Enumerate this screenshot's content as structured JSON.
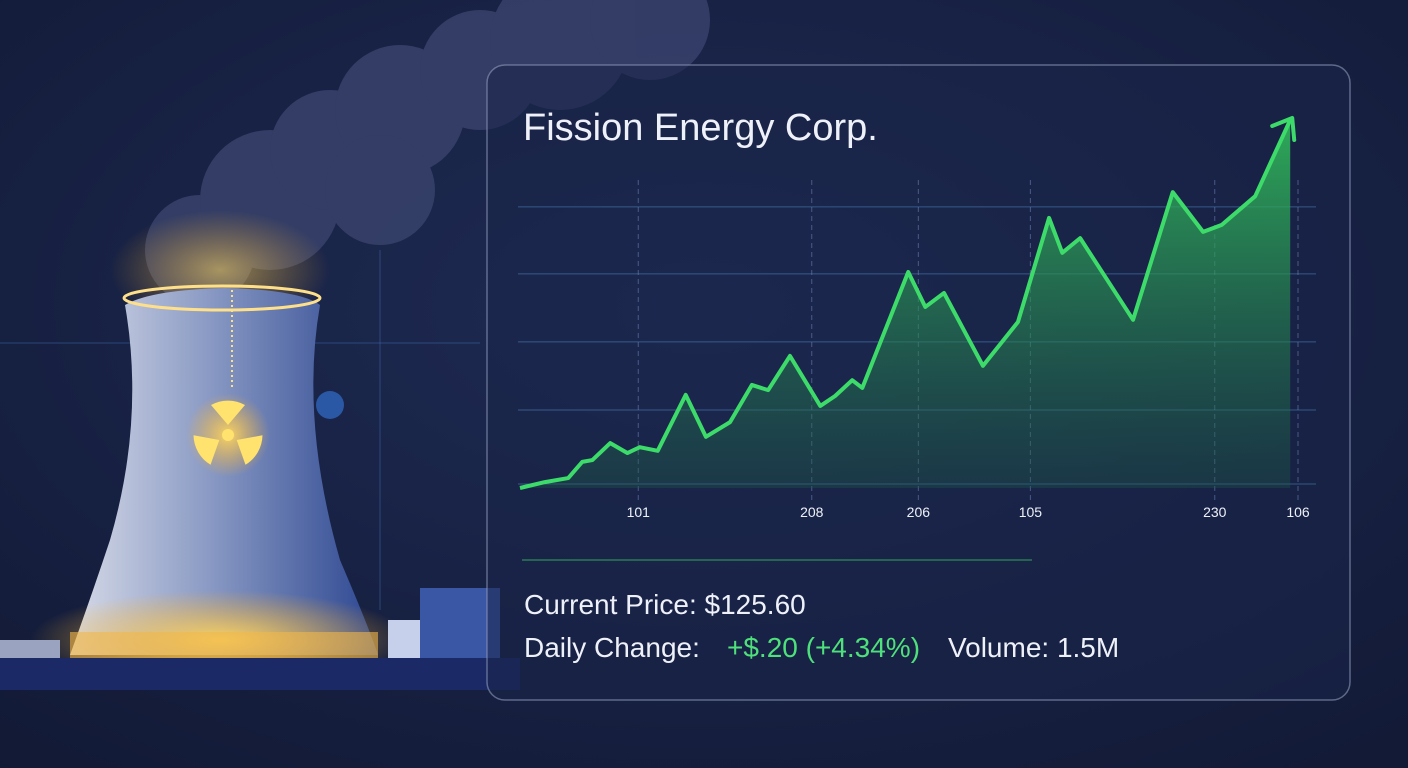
{
  "chart_data": {
    "type": "area",
    "title": "Fission Energy Corp.",
    "x": [
      0,
      3.2,
      6.2,
      8.0,
      9.3,
      11.6,
      13.8,
      15.4,
      17.7,
      21.3,
      23.9,
      27.0,
      29.8,
      31.9,
      34.7,
      38.6,
      40.5,
      42.7,
      44.0,
      49.9,
      52.1,
      54.5,
      59.5,
      64.0,
      68.0,
      69.7,
      72.0,
      78.8,
      83.9,
      87.8,
      90.2,
      94.5,
      99.0
    ],
    "values": [
      0,
      1.6,
      2.7,
      7.1,
      7.6,
      12.2,
      9.5,
      11.1,
      10.1,
      25.3,
      13.9,
      17.9,
      28.0,
      26.6,
      35.9,
      22.3,
      25.0,
      29.3,
      27.2,
      58.7,
      49.2,
      53.0,
      33.2,
      45.1,
      73.4,
      63.9,
      67.9,
      45.7,
      80.4,
      69.6,
      71.5,
      79.3,
      100
    ],
    "color": "#3ddc6a",
    "xlim": [
      0,
      100
    ],
    "ylim": [
      0,
      100
    ],
    "xticks": [
      {
        "value": 15.2,
        "label": "101"
      },
      {
        "value": 37.5,
        "label": "208"
      },
      {
        "value": 51.2,
        "label": "206"
      },
      {
        "value": 65.6,
        "label": "105"
      },
      {
        "value": 89.3,
        "label": "230"
      },
      {
        "value": 100,
        "label": "106"
      }
    ],
    "yticks": [
      1.1,
      21.2,
      39.7,
      58.2,
      76.4
    ],
    "grid": true
  },
  "stats": {
    "price": "Current Price: $125.60",
    "change_label": "Daily Change:",
    "change": "+$.20 (+4.34%)",
    "volume": "Volume: 1.5M"
  }
}
